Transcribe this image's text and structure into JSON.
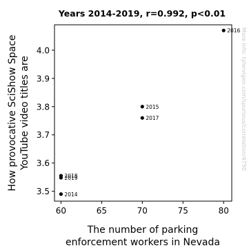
{
  "chart_data": {
    "type": "scatter",
    "title": "Years 2014-2019, r=0.992, p<0.01",
    "xlabel_lines": [
      "The number of parking",
      "enforcement workers in Nevada"
    ],
    "ylabel_lines": [
      "How provocative SciShow Space",
      "YouTube video titles are"
    ],
    "watermark": "More info: tylervigen.com/spurious/correlation/4750",
    "xlim": [
      59.2,
      81.0
    ],
    "ylim": [
      3.465,
      4.09
    ],
    "xticks": [
      60,
      65,
      70,
      75,
      80
    ],
    "yticks": [
      3.5,
      3.6,
      3.7,
      3.8,
      3.9,
      4.0
    ],
    "ytick_labels": [
      "3.5",
      "3.6",
      "3.7",
      "3.8",
      "3.9",
      "4.0"
    ],
    "point_color": "#000000",
    "grid": false,
    "points": [
      {
        "x": 60,
        "y": 3.49,
        "label": "2014"
      },
      {
        "x": 70,
        "y": 3.8,
        "label": "2015"
      },
      {
        "x": 80,
        "y": 4.07,
        "label": "2016"
      },
      {
        "x": 70,
        "y": 3.76,
        "label": "2017"
      },
      {
        "x": 60,
        "y": 3.555,
        "label": "2018"
      },
      {
        "x": 60,
        "y": 3.548,
        "label": "2019"
      }
    ]
  }
}
